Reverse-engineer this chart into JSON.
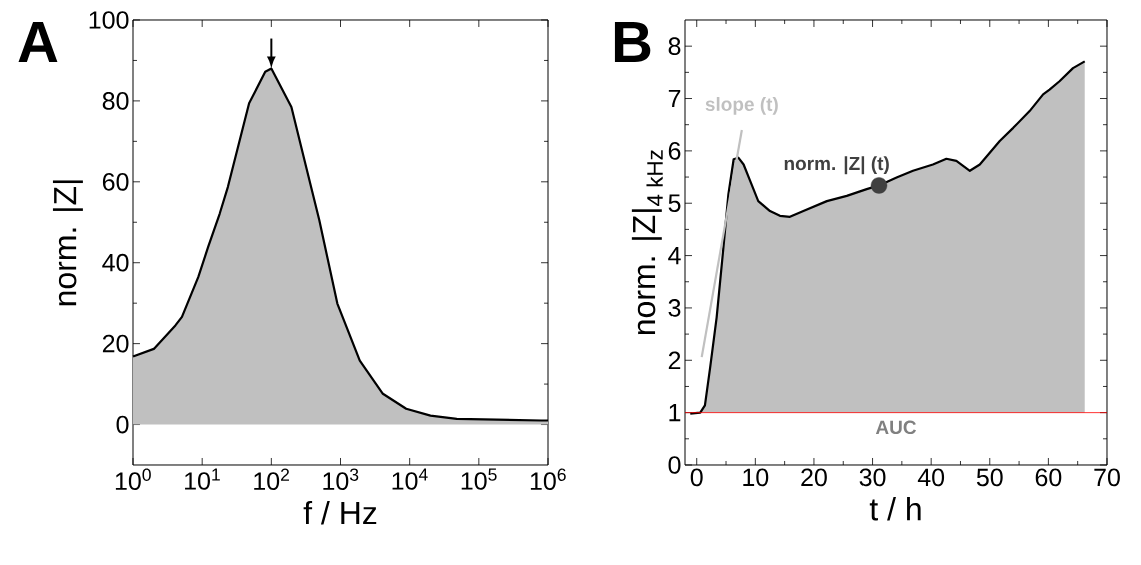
{
  "chart_data": [
    {
      "type": "area",
      "title": "A",
      "xlabel": "f / Hz",
      "ylabel": "norm. |Z|",
      "log": "x",
      "xlim": [
        1,
        1000000
      ],
      "ylim": [
        -10,
        100
      ],
      "xticks": [
        {
          "value": 1,
          "label": "10$^{0}$"
        },
        {
          "value": 10,
          "label": "10$^{1}$"
        },
        {
          "value": 100,
          "label": "10$^{2}$"
        },
        {
          "value": 1000,
          "label": "10$^{3}$"
        },
        {
          "value": 10000,
          "label": "10$^{4}$"
        },
        {
          "value": 100000,
          "label": "10$^{5}$"
        },
        {
          "value": 1000000,
          "label": "10$^{6}$"
        }
      ],
      "yticks": [
        0,
        20,
        40,
        60,
        80,
        100
      ],
      "x": [
        1,
        2,
        4.1,
        5.1,
        8.8,
        12.2,
        17.9,
        23.5,
        47.7,
        81.6,
        100,
        195,
        318,
        494,
        900,
        1900,
        4100,
        8900,
        20000,
        48000,
        800000,
        1000000
      ],
      "series": [
        {
          "color": "#c0c0c0",
          "values": [
            16.8,
            18.7,
            24.5,
            26.6,
            36.5,
            43.9,
            52.1,
            58.7,
            79.4,
            87.2,
            88.0,
            78.5,
            63.7,
            50.5,
            29.9,
            15.8,
            7.6,
            3.9,
            2.2,
            1.4,
            1.0,
            1.0
          ]
        }
      ]
    },
    {
      "type": "area",
      "title": "B",
      "xlabel": "t / h",
      "ylabel": "norm. |Z|$_{4 kHz}$",
      "xlim": [
        -2,
        70
      ],
      "ylim": [
        0,
        8.5
      ],
      "xticks": [
        0,
        10,
        20,
        30,
        40,
        50,
        60,
        70
      ],
      "yticks": [
        0,
        1,
        2,
        3,
        4,
        5,
        6,
        7,
        8
      ],
      "x": [
        -1.1,
        0.6,
        1.4,
        2.3,
        3.4,
        4.5,
        5.4,
        6.3,
        7.1,
        8.0,
        9.1,
        10.5,
        12.5,
        14.2,
        15.9,
        18.2,
        22.2,
        25.6,
        29.0,
        31.1,
        34.1,
        36.9,
        40.3,
        42.6,
        44.3,
        46.6,
        48.3,
        51.7,
        54.0,
        56.8,
        59.1,
        60.2,
        61.9,
        64.2,
        66.2
      ],
      "series": [
        {
          "color": "#c0c0c0",
          "values": [
            0.98,
            1.0,
            1.14,
            1.87,
            2.82,
            4.09,
            5.17,
            5.84,
            5.87,
            5.74,
            5.43,
            5.04,
            4.85,
            4.76,
            4.74,
            4.85,
            5.04,
            5.14,
            5.27,
            5.34,
            5.49,
            5.62,
            5.74,
            5.85,
            5.81,
            5.62,
            5.74,
            6.19,
            6.44,
            6.76,
            7.08,
            7.17,
            7.33,
            7.58,
            7.71
          ]
        },
        {
          "type": "line",
          "color": "#c0c0c0",
          "x": [
            0.85,
            7.7
          ],
          "values": [
            2.06,
            6.4
          ]
        },
        {
          "type": "scatter",
          "marker": "circle",
          "color": "#404040",
          "x": [
            31.1
          ],
          "values": [
            5.34
          ]
        }
      ],
      "ref_lines": [
        {
          "axis": "y",
          "value": 1,
          "color": "#ff0000"
        }
      ],
      "annotations": [
        {
          "text": "slope (t)",
          "x": 7.7,
          "y": 6.4
        },
        {
          "text": "norm. |Z| (t)",
          "x": 31.1,
          "y": 5.34
        },
        "AUC"
      ]
    }
  ]
}
